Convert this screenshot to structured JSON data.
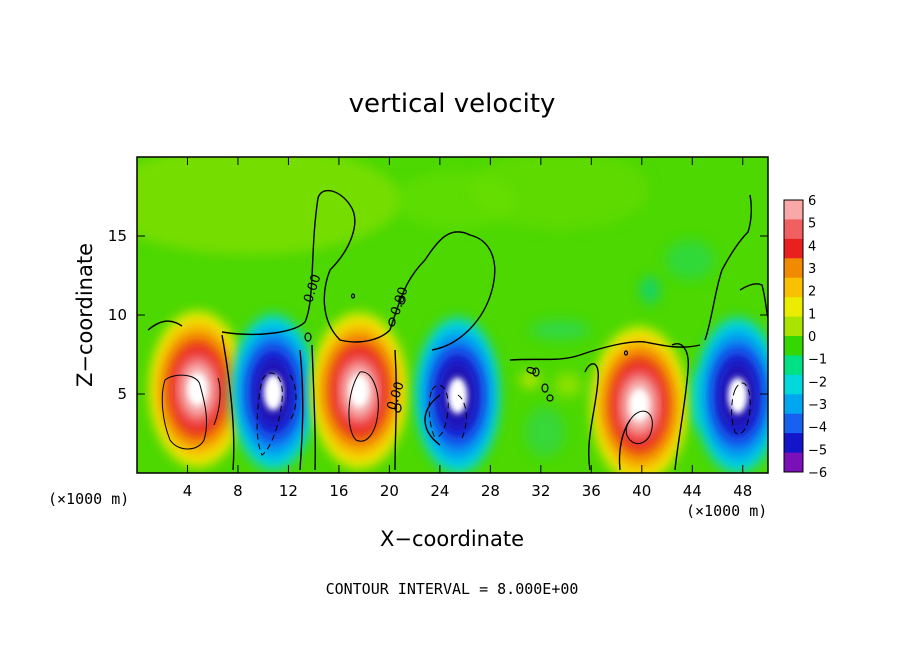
{
  "chart_data": {
    "type": "heatmap",
    "title": "vertical velocity",
    "xlabel": "X−coordinate",
    "ylabel": "Z−coordinate",
    "x_unit_left": "(×1000 m)",
    "x_unit_right": "(×1000 m)",
    "footer": "CONTOUR INTERVAL = 8.000E+00",
    "xlim": [
      0,
      50
    ],
    "ylim": [
      0,
      20
    ],
    "xticks": [
      4,
      8,
      12,
      16,
      20,
      24,
      28,
      32,
      36,
      40,
      44,
      48
    ],
    "yticks": [
      5,
      10,
      15
    ],
    "contour_labels": [
      {
        "text": "0.00",
        "x": 14.2,
        "y": 11.6
      },
      {
        "text": "0.00",
        "x": 21.1,
        "y": 10.8
      },
      {
        "text": "0.00",
        "x": 20.8,
        "y": 4.8
      },
      {
        "text": "0",
        "x": 31.6,
        "y": 6.4
      }
    ],
    "colorbar": {
      "labels": [
        "6",
        "5",
        "4",
        "3",
        "2",
        "1",
        "0",
        "−1",
        "−2",
        "−3",
        "−4",
        "−5",
        "−6"
      ],
      "colors": [
        "#f8a8a8",
        "#f06060",
        "#e82020",
        "#f08a00",
        "#f8c000",
        "#ecec00",
        "#a8e400",
        "#34d800",
        "#00e084",
        "#00d8dc",
        "#00a6f0",
        "#1860f0",
        "#1414c8",
        "#7a10b8"
      ]
    },
    "cells": [
      {
        "x": 4.8,
        "y": 5.3,
        "value": 9
      },
      {
        "x": 10.8,
        "y": 5.1,
        "value": -9
      },
      {
        "x": 17.6,
        "y": 5.2,
        "value": 9
      },
      {
        "x": 25.4,
        "y": 4.9,
        "value": -9
      },
      {
        "x": 39.8,
        "y": 4.3,
        "value": 9
      },
      {
        "x": 47.6,
        "y": 4.9,
        "value": -9
      }
    ]
  }
}
